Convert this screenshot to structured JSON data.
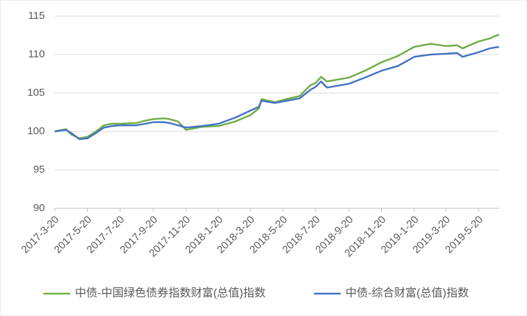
{
  "chart_data": {
    "type": "line",
    "x": [
      "2017-3-20",
      "2017-4-10",
      "2017-4-20",
      "2017-5-5",
      "2017-5-20",
      "2017-6-5",
      "2017-6-20",
      "2017-7-5",
      "2017-7-20",
      "2017-8-20",
      "2017-9-5",
      "2017-9-20",
      "2017-10-10",
      "2017-10-20",
      "2017-11-5",
      "2017-11-20",
      "2017-12-20",
      "2018-1-20",
      "2018-2-20",
      "2018-3-20",
      "2018-4-5",
      "2018-4-10",
      "2018-5-5",
      "2018-5-20",
      "2018-6-20",
      "2018-7-10",
      "2018-7-20",
      "2018-7-30",
      "2018-8-10",
      "2018-9-20",
      "2018-10-20",
      "2018-11-20",
      "2018-12-20",
      "2019-1-20",
      "2019-2-20",
      "2019-3-20",
      "2019-4-10",
      "2019-4-20",
      "2019-5-20",
      "2019-6-10",
      "2019-6-27"
    ],
    "series": [
      {
        "name": "中债-中国绿色债券指数财富(总值)指数",
        "color": "#70ad47",
        "values": [
          100,
          100.3,
          99.6,
          99.1,
          99.3,
          100.0,
          100.8,
          101.0,
          101.0,
          101.1,
          101.4,
          101.6,
          101.7,
          101.6,
          101.3,
          100.2,
          100.6,
          100.7,
          101.3,
          102.1,
          103.0,
          104.2,
          103.8,
          104.1,
          104.6,
          106.0,
          106.3,
          107.1,
          106.5,
          107.0,
          107.9,
          109.0,
          109.8,
          111.0,
          111.4,
          111.1,
          111.2,
          110.8,
          111.7,
          112.1,
          112.6
        ]
      },
      {
        "name": "中债-综合财富(总值)指数",
        "color": "#4472c4",
        "values": [
          100,
          100.2,
          99.8,
          99.0,
          99.1,
          99.8,
          100.5,
          100.7,
          100.8,
          100.8,
          101.0,
          101.2,
          101.2,
          101.1,
          100.8,
          100.5,
          100.7,
          101.0,
          101.8,
          102.7,
          103.2,
          104.0,
          103.7,
          103.9,
          104.3,
          105.4,
          105.8,
          106.5,
          105.7,
          106.2,
          107.0,
          107.9,
          108.5,
          109.7,
          110.0,
          110.1,
          110.2,
          109.7,
          110.3,
          110.8,
          111.0
        ]
      }
    ],
    "xlim": [
      "2017-3-20",
      "2019-6-27"
    ],
    "xticks": [
      "2017-3-20",
      "2017-5-20",
      "2017-7-20",
      "2017-9-20",
      "2017-11-20",
      "2018-1-20",
      "2018-3-20",
      "2018-5-20",
      "2018-7-20",
      "2018-9-20",
      "2018-11-20",
      "2019-1-20",
      "2019-3-20",
      "2019-5-20"
    ],
    "ylim": [
      90,
      115
    ],
    "yticks": [
      90,
      95,
      100,
      105,
      110,
      115
    ],
    "grid": true,
    "legend": "bottom"
  }
}
